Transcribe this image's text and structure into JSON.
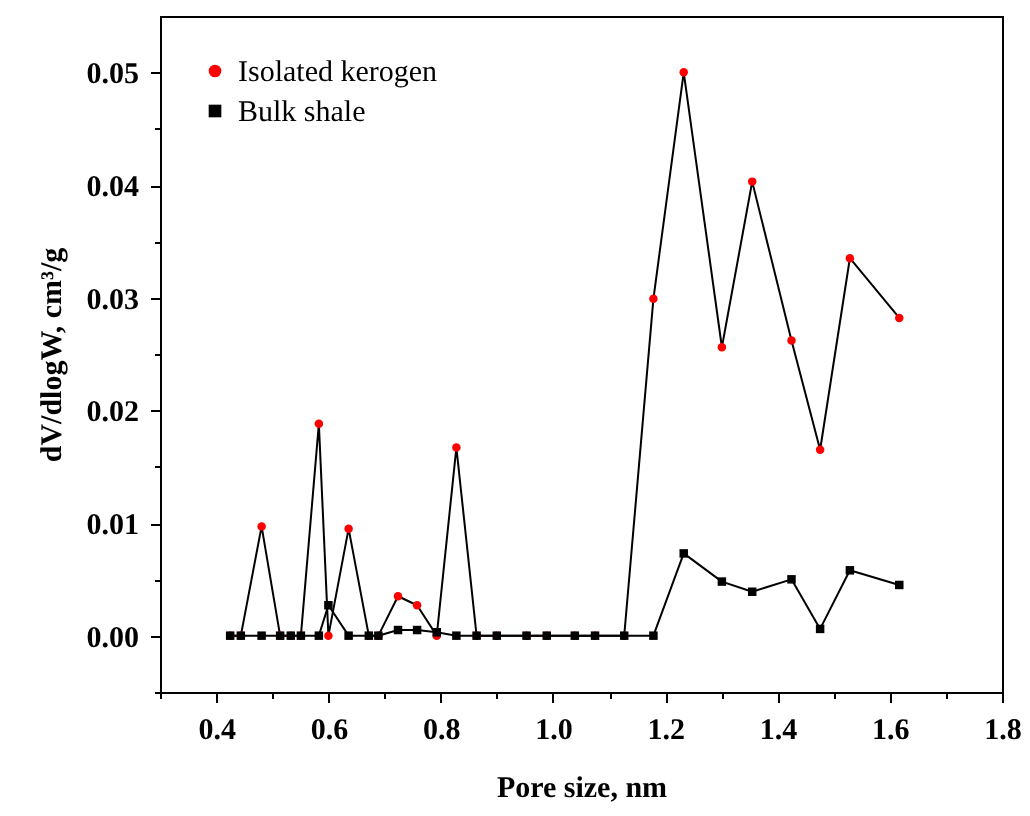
{
  "chart_data": {
    "type": "line",
    "xlabel": "Pore size, nm",
    "ylabel": "dV/dlogW, cm³/g",
    "x": [
      0.425,
      0.444,
      0.481,
      0.514,
      0.533,
      0.551,
      0.583,
      0.6,
      0.636,
      0.672,
      0.689,
      0.724,
      0.758,
      0.793,
      0.828,
      0.864,
      0.9,
      0.953,
      0.989,
      1.039,
      1.075,
      1.127,
      1.179,
      1.233,
      1.301,
      1.355,
      1.425,
      1.476,
      1.529,
      1.617
    ],
    "series": [
      {
        "name": "Isolated kerogen",
        "color": "#ff0000",
        "marker": "circle",
        "values": [
          0,
          0,
          0.0097,
          0,
          0,
          0,
          0.0188,
          0,
          0.0095,
          0,
          0,
          0.0035,
          0.0027,
          0,
          0.0167,
          0,
          0,
          0,
          0,
          0,
          0,
          0,
          0.0299,
          0.05,
          0.0256,
          0.0403,
          0.0262,
          0.0165,
          0.0335,
          0.0282
        ]
      },
      {
        "name": "Bulk shale",
        "color": "#000000",
        "marker": "square",
        "values": [
          0,
          0,
          0,
          0,
          0,
          0,
          0,
          0.0027,
          0,
          0,
          0,
          0.0005,
          0.0005,
          0.0003,
          0,
          0,
          0,
          0,
          0,
          0,
          0,
          0,
          0,
          0.0073,
          0.0048,
          0.0039,
          0.005,
          0.0006,
          0.0058,
          0.0045
        ]
      }
    ],
    "xlim": [
      0.3,
      1.8
    ],
    "xticks": [
      {
        "value": 0.3,
        "label": null
      },
      0.4,
      {
        "value": 0.5,
        "label": null
      },
      0.6,
      {
        "value": 0.7,
        "label": null
      },
      0.8,
      {
        "value": 0.9,
        "label": null
      },
      {
        "value": 1.0,
        "label": "1.0"
      },
      {
        "value": 1.1,
        "label": null
      },
      1.2,
      {
        "value": 1.3,
        "label": null
      },
      1.4,
      {
        "value": 1.5,
        "label": null
      },
      1.6,
      {
        "value": 1.7,
        "label": null
      },
      1.8
    ],
    "ylim": [
      -0.005,
      0.055
    ],
    "yticks": [
      {
        "value": -0.005,
        "label": null
      },
      {
        "value": 0,
        "label": "0.00"
      },
      {
        "value": 0.005,
        "label": null
      },
      {
        "value": 0.01,
        "label": "0.01"
      },
      {
        "value": 0.015,
        "label": null
      },
      {
        "value": 0.02,
        "label": "0.02"
      },
      {
        "value": 0.025,
        "label": null
      },
      {
        "value": 0.03,
        "label": "0.03"
      },
      {
        "value": 0.035,
        "label": null
      },
      {
        "value": 0.04,
        "label": "0.04"
      },
      {
        "value": 0.045,
        "label": null
      },
      {
        "value": 0.05,
        "label": "0.05"
      }
    ],
    "legend": "top left",
    "grid": false,
    "line_style": "solid"
  }
}
